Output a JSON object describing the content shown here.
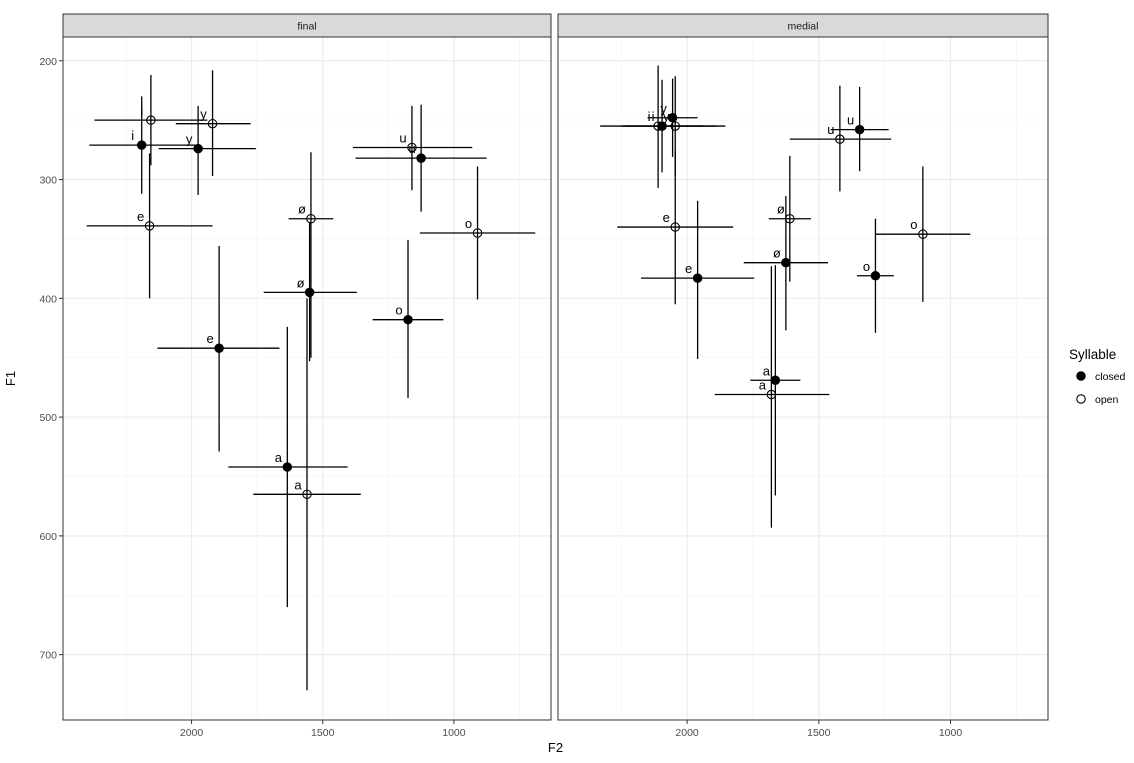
{
  "chart_data": {
    "type": "scatter",
    "subtype": "faceted scatter with horizontal and vertical error bars",
    "xlabel": "F2",
    "ylabel": "F1",
    "x_reversed": true,
    "y_reversed": true,
    "xlim": [
      2490,
      630
    ],
    "ylim": [
      180,
      755
    ],
    "x_ticks": [
      2000,
      1500,
      1000
    ],
    "y_ticks": [
      200,
      300,
      400,
      500,
      600,
      700
    ],
    "grid": true,
    "theme": "bw",
    "panels": [
      {
        "title": "final",
        "points": [
          {
            "vowel": "i",
            "syllable": "open",
            "f2": 2155,
            "f1": 250,
            "f2_lo": 2370,
            "f2_hi": 1940,
            "f1_lo": 212,
            "f1_hi": 288
          },
          {
            "vowel": "i",
            "syllable": "closed",
            "f2": 2190,
            "f1": 271,
            "f2_lo": 2390,
            "f2_hi": 1985,
            "f1_lo": 230,
            "f1_hi": 312
          },
          {
            "vowel": "y",
            "syllable": "open",
            "f2": 1920,
            "f1": 253,
            "f2_lo": 2060,
            "f2_hi": 1775,
            "f1_lo": 208,
            "f1_hi": 297
          },
          {
            "vowel": "y",
            "syllable": "closed",
            "f2": 1975,
            "f1": 274,
            "f2_lo": 2125,
            "f2_hi": 1755,
            "f1_lo": 238,
            "f1_hi": 313
          },
          {
            "vowel": "u",
            "syllable": "open",
            "f2": 1160,
            "f1": 273,
            "f2_lo": 1385,
            "f2_hi": 930,
            "f1_lo": 238,
            "f1_hi": 309
          },
          {
            "vowel": "u",
            "syllable": "closed",
            "f2": 1125,
            "f1": 282,
            "f2_lo": 1375,
            "f2_hi": 875,
            "f1_lo": 237,
            "f1_hi": 327
          },
          {
            "vowel": "e",
            "syllable": "open",
            "f2": 2160,
            "f1": 339,
            "f2_lo": 2400,
            "f2_hi": 1920,
            "f1_lo": 278,
            "f1_hi": 400
          },
          {
            "vowel": "e",
            "syllable": "closed",
            "f2": 1895,
            "f1": 442,
            "f2_lo": 2130,
            "f2_hi": 1665,
            "f1_lo": 356,
            "f1_hi": 529
          },
          {
            "vowel": "ø",
            "syllable": "open",
            "f2": 1545,
            "f1": 333,
            "f2_lo": 1630,
            "f2_hi": 1460,
            "f1_lo": 277,
            "f1_hi": 450
          },
          {
            "vowel": "ø",
            "syllable": "closed",
            "f2": 1550,
            "f1": 395,
            "f2_lo": 1725,
            "f2_hi": 1370,
            "f1_lo": 336,
            "f1_hi": 453
          },
          {
            "vowel": "o",
            "syllable": "open",
            "f2": 910,
            "f1": 345,
            "f2_lo": 1130,
            "f2_hi": 690,
            "f1_lo": 289,
            "f1_hi": 401
          },
          {
            "vowel": "o",
            "syllable": "closed",
            "f2": 1175,
            "f1": 418,
            "f2_lo": 1310,
            "f2_hi": 1040,
            "f1_lo": 351,
            "f1_hi": 484
          },
          {
            "vowel": "a",
            "syllable": "closed",
            "f2": 1635,
            "f1": 542,
            "f2_lo": 1860,
            "f2_hi": 1405,
            "f1_lo": 424,
            "f1_hi": 660
          },
          {
            "vowel": "a",
            "syllable": "open",
            "f2": 1560,
            "f1": 565,
            "f2_lo": 1765,
            "f2_hi": 1355,
            "f1_lo": 400,
            "f1_hi": 730
          }
        ]
      },
      {
        "title": "medial",
        "points": [
          {
            "vowel": "i",
            "syllable": "open",
            "f2": 2110,
            "f1": 255,
            "f2_lo": 2330,
            "f2_hi": 1890,
            "f1_lo": 204,
            "f1_hi": 307
          },
          {
            "vowel": "i",
            "syllable": "closed",
            "f2": 2095,
            "f1": 255,
            "f2_lo": 2250,
            "f2_hi": 1940,
            "f1_lo": 216,
            "f1_hi": 294
          },
          {
            "vowel": "y",
            "syllable": "closed",
            "f2": 2055,
            "f1": 248,
            "f2_lo": 2150,
            "f2_hi": 1960,
            "f1_lo": 215,
            "f1_hi": 281
          },
          {
            "vowel": "y",
            "syllable": "open",
            "f2": 2045,
            "f1": 255,
            "f2_lo": 2235,
            "f2_hi": 1855,
            "f1_lo": 213,
            "f1_hi": 297
          },
          {
            "vowel": "u",
            "syllable": "closed",
            "f2": 1345,
            "f1": 258,
            "f2_lo": 1455,
            "f2_hi": 1235,
            "f1_lo": 222,
            "f1_hi": 293
          },
          {
            "vowel": "u",
            "syllable": "open",
            "f2": 1420,
            "f1": 266,
            "f2_lo": 1610,
            "f2_hi": 1225,
            "f1_lo": 221,
            "f1_hi": 310
          },
          {
            "vowel": "e",
            "syllable": "open",
            "f2": 2045,
            "f1": 340,
            "f2_lo": 2265,
            "f2_hi": 1825,
            "f1_lo": 276,
            "f1_hi": 405
          },
          {
            "vowel": "e",
            "syllable": "closed",
            "f2": 1960,
            "f1": 383,
            "f2_lo": 2175,
            "f2_hi": 1745,
            "f1_lo": 318,
            "f1_hi": 451
          },
          {
            "vowel": "ø",
            "syllable": "open",
            "f2": 1610,
            "f1": 333,
            "f2_lo": 1690,
            "f2_hi": 1530,
            "f1_lo": 280,
            "f1_hi": 386
          },
          {
            "vowel": "ø",
            "syllable": "closed",
            "f2": 1625,
            "f1": 370,
            "f2_lo": 1785,
            "f2_hi": 1465,
            "f1_lo": 314,
            "f1_hi": 427
          },
          {
            "vowel": "o",
            "syllable": "open",
            "f2": 1105,
            "f1": 346,
            "f2_lo": 1285,
            "f2_hi": 925,
            "f1_lo": 289,
            "f1_hi": 403
          },
          {
            "vowel": "o",
            "syllable": "closed",
            "f2": 1285,
            "f1": 381,
            "f2_lo": 1355,
            "f2_hi": 1215,
            "f1_lo": 333,
            "f1_hi": 429
          },
          {
            "vowel": "a",
            "syllable": "closed",
            "f2": 1665,
            "f1": 469,
            "f2_lo": 1760,
            "f2_hi": 1570,
            "f1_lo": 372,
            "f1_hi": 566
          },
          {
            "vowel": "a",
            "syllable": "open",
            "f2": 1680,
            "f1": 481,
            "f2_lo": 1895,
            "f2_hi": 1460,
            "f1_lo": 373,
            "f1_hi": 593
          }
        ]
      }
    ],
    "legend": {
      "title": "Syllable",
      "placement": "right",
      "entries": [
        {
          "label": "closed",
          "marker": "filled-circle"
        },
        {
          "label": "open",
          "marker": "open-circle"
        }
      ]
    },
    "colors": {
      "strip_fill": "#d9d9d9",
      "panel_border": "#333333",
      "grid_major": "#ebebeb",
      "grid_minor": "#f5f5f5",
      "marks": "#000000",
      "tick_text": "#4d4d4d"
    }
  }
}
